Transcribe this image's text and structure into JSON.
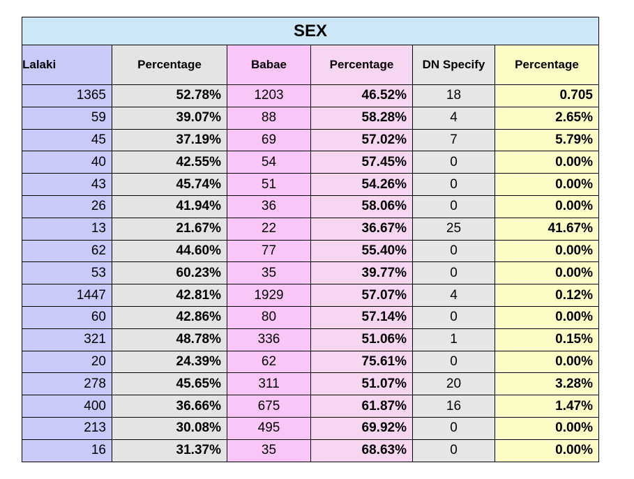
{
  "table": {
    "title": "SEX",
    "headers": [
      "Lalaki",
      "Percentage",
      "Babae",
      "Percentage",
      "DN Specify",
      "Percentage"
    ],
    "colors": {
      "title_bg": "#cce8f8",
      "lalaki": "#c9c9fa",
      "pct1": "#e2e4e6",
      "babae": "#fac6f8",
      "pct2": "#f7d6f2",
      "dn": "#e6e6e6",
      "pct3": "#fcfcc6"
    },
    "rows": [
      [
        "1365",
        "52.78%",
        "1203",
        "46.52%",
        "18",
        "0.705"
      ],
      [
        "59",
        "39.07%",
        "88",
        "58.28%",
        "4",
        "2.65%"
      ],
      [
        "45",
        "37.19%",
        "69",
        "57.02%",
        "7",
        "5.79%"
      ],
      [
        "40",
        "42.55%",
        "54",
        "57.45%",
        "0",
        "0.00%"
      ],
      [
        "43",
        "45.74%",
        "51",
        "54.26%",
        "0",
        "0.00%"
      ],
      [
        "26",
        "41.94%",
        "36",
        "58.06%",
        "0",
        "0.00%"
      ],
      [
        "13",
        "21.67%",
        "22",
        "36.67%",
        "25",
        "41.67%"
      ],
      [
        "62",
        "44.60%",
        "77",
        "55.40%",
        "0",
        "0.00%"
      ],
      [
        "53",
        "60.23%",
        "35",
        "39.77%",
        "0",
        "0.00%"
      ],
      [
        "1447",
        "42.81%",
        "1929",
        "57.07%",
        "4",
        "0.12%"
      ],
      [
        "60",
        "42.86%",
        "80",
        "57.14%",
        "0",
        "0.00%"
      ],
      [
        "321",
        "48.78%",
        "336",
        "51.06%",
        "1",
        "0.15%"
      ],
      [
        "20",
        "24.39%",
        "62",
        "75.61%",
        "0",
        "0.00%"
      ],
      [
        "278",
        "45.65%",
        "311",
        "51.07%",
        "20",
        "3.28%"
      ],
      [
        "400",
        "36.66%",
        "675",
        "61.87%",
        "16",
        "1.47%"
      ],
      [
        "213",
        "30.08%",
        "495",
        "69.92%",
        "0",
        "0.00%"
      ],
      [
        "16",
        "31.37%",
        "35",
        "68.63%",
        "0",
        "0.00%"
      ]
    ]
  }
}
